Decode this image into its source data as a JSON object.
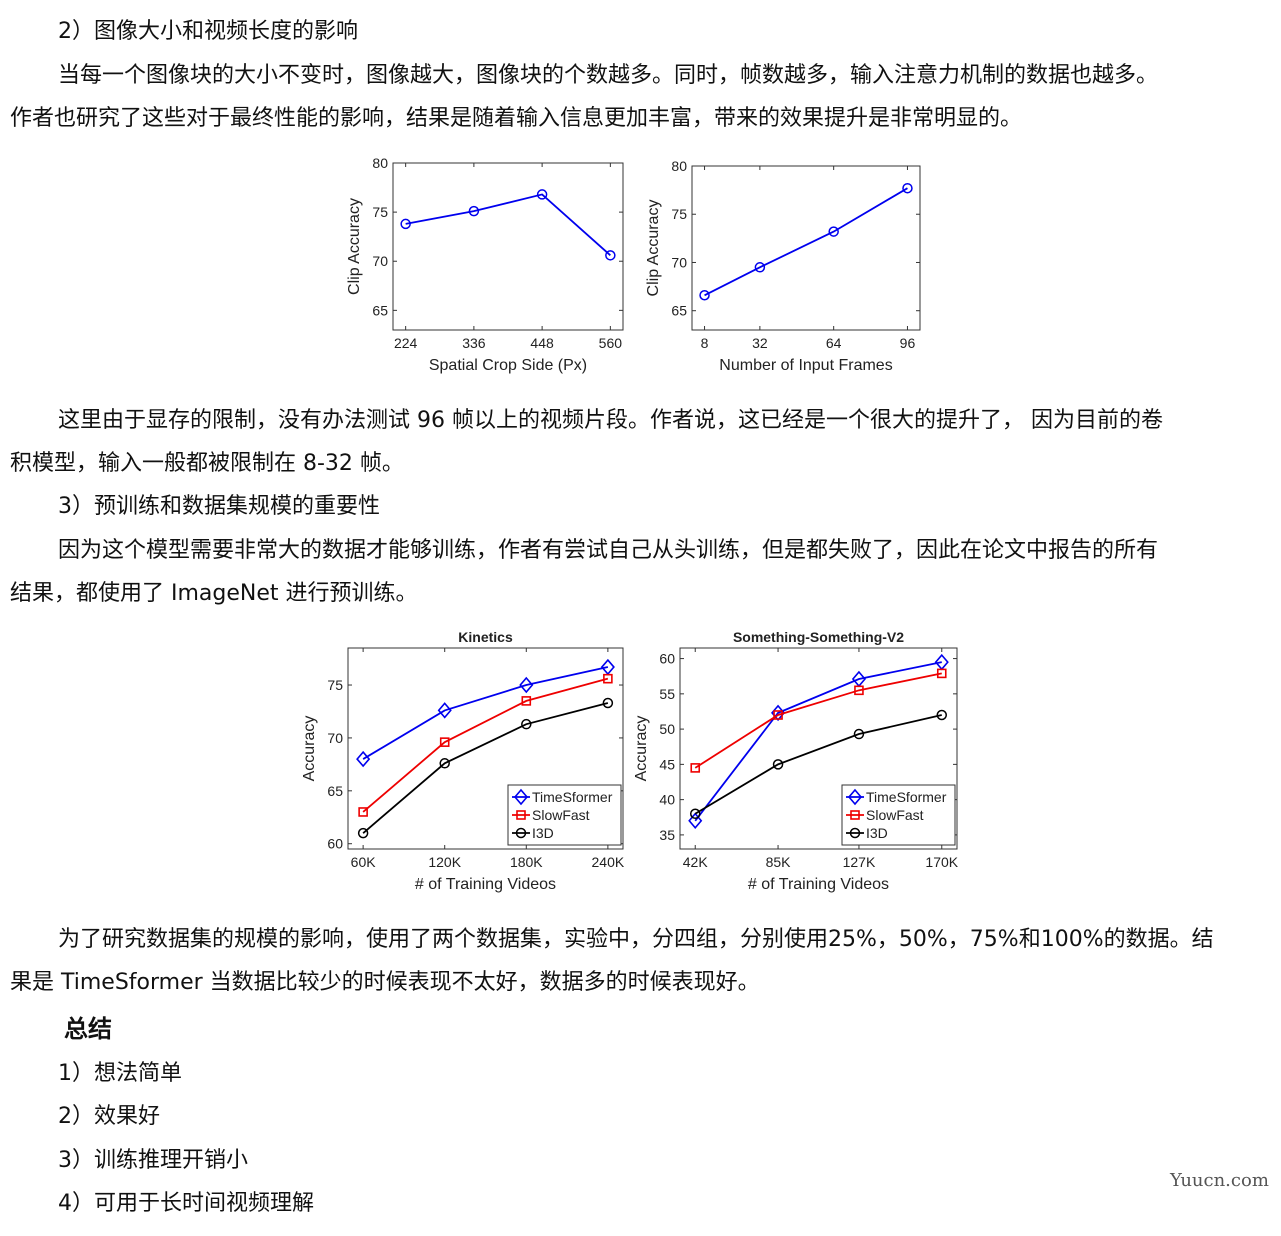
{
  "text": {
    "s2_heading": "2）图像大小和视频长度的影响",
    "p1_line1": "当每一个图像块的大小不变时，图像越大，图像块的个数越多。同时，帧数越多，输入注意力机制的数据也越多。",
    "p1_line2": "作者也研究了这些对于最终性能的影响，结果是随着输入信息更加丰富，带来的效果提升是非常明显的。",
    "p2_line1": "这里由于显存的限制，没有办法测试 96 帧以上的视频片段。作者说，这已经是一个很大的提升了， 因为目前的卷",
    "p2_line2": "积模型，输入一般都被限制在 8-32 帧。",
    "s3_heading": "3）预训练和数据集规模的重要性",
    "p3_line1": "因为这个模型需要非常大的数据才能够训练，作者有尝试自己从头训练，但是都失败了，因此在论文中报告的所有",
    "p3_line2": "结果，都使用了 ImageNet 进行预训练。",
    "p4_line1": "为了研究数据集的规模的影响，使用了两个数据集，实验中，分四组，分别使用25%，50%，75%和100%的数据。结",
    "p4_line2": "果是 TimeSformer 当数据比较少的时候表现不太好，数据多的时候表现好。",
    "summary_title": "总结",
    "summary_items": [
      "1）想法简单",
      "2）效果好",
      "3）训练推理开销小",
      "4）可用于长时间视频理解"
    ],
    "watermark": "Yuucn.com"
  },
  "colors": {
    "blue": "#0000ee",
    "red": "#ee0000",
    "black": "#000000"
  },
  "chart_data": [
    {
      "type": "line",
      "title": "",
      "xlabel": "Spatial Crop Side (Px)",
      "ylabel": "Clip Accuracy",
      "categories": [
        "224",
        "336",
        "448",
        "560"
      ],
      "x": [
        224,
        336,
        448,
        560
      ],
      "ylim": [
        63,
        80
      ],
      "yticks": [
        65,
        70,
        75,
        80
      ],
      "series": [
        {
          "values": [
            73.8,
            75.1,
            76.8,
            70.6
          ],
          "marker": "circle",
          "color": "#0000ee"
        }
      ]
    },
    {
      "type": "line",
      "title": "",
      "xlabel": "Number of Input Frames",
      "ylabel": "Clip Accuracy",
      "categories": [
        "8",
        "32",
        "64",
        "96"
      ],
      "x": [
        8,
        32,
        64,
        96
      ],
      "ylim": [
        63,
        80
      ],
      "yticks": [
        65,
        70,
        75,
        80
      ],
      "series": [
        {
          "values": [
            66.6,
            69.5,
            73.2,
            77.7
          ],
          "marker": "circle",
          "color": "#0000ee"
        }
      ]
    },
    {
      "type": "line",
      "title": "Kinetics",
      "xlabel": "# of Training Videos",
      "ylabel": "Accuracy",
      "categories": [
        "60K",
        "120K",
        "180K",
        "240K"
      ],
      "x": [
        60,
        120,
        180,
        240
      ],
      "ylim": [
        59.5,
        78.5
      ],
      "yticks": [
        60,
        65,
        70,
        75
      ],
      "legend": "bottom-right",
      "series": [
        {
          "name": "TimeSformer",
          "values": [
            68,
            72.6,
            75.0,
            76.7
          ],
          "marker": "diamond",
          "color": "#0000ee"
        },
        {
          "name": "SlowFast",
          "values": [
            63,
            69.6,
            73.5,
            75.6
          ],
          "marker": "square",
          "color": "#ee0000"
        },
        {
          "name": "I3D",
          "values": [
            61,
            67.6,
            71.3,
            73.3
          ],
          "marker": "circle",
          "color": "#000000"
        }
      ]
    },
    {
      "type": "line",
      "title": "Something-Something-V2",
      "xlabel": "# of Training Videos",
      "ylabel": "Accuracy",
      "categories": [
        "42K",
        "85K",
        "127K",
        "170K"
      ],
      "x": [
        42,
        85,
        127,
        170
      ],
      "ylim": [
        33,
        61.5
      ],
      "yticks": [
        35,
        40,
        45,
        50,
        55,
        60
      ],
      "legend": "bottom-right",
      "series": [
        {
          "name": "TimeSformer",
          "values": [
            37,
            52.3,
            57.1,
            59.5
          ],
          "marker": "diamond",
          "color": "#0000ee"
        },
        {
          "name": "SlowFast",
          "values": [
            44.5,
            52.0,
            55.5,
            57.9
          ],
          "marker": "square",
          "color": "#ee0000"
        },
        {
          "name": "I3D",
          "values": [
            38,
            45.0,
            49.3,
            52.0
          ],
          "marker": "circle",
          "color": "#000000"
        }
      ]
    }
  ]
}
